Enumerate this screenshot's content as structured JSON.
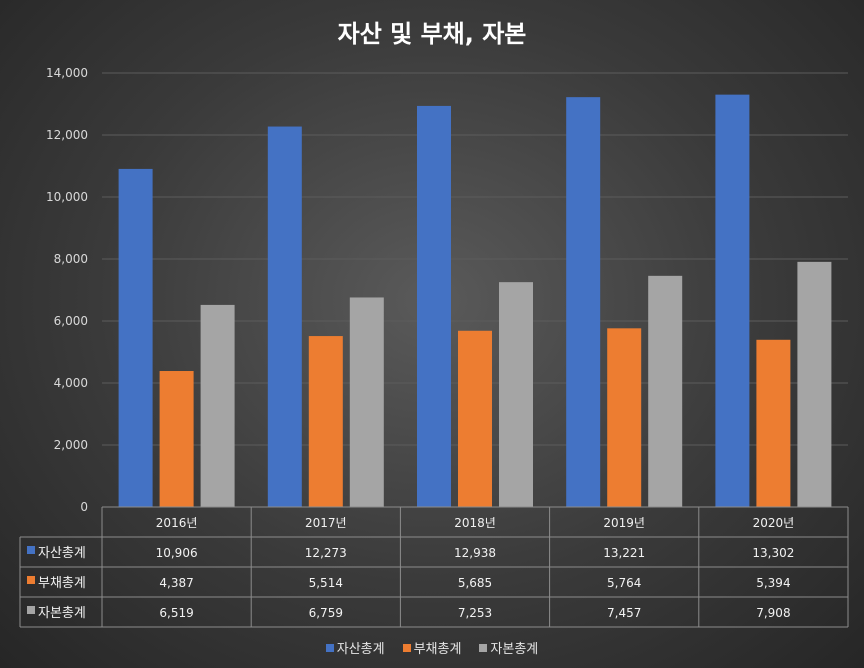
{
  "chart_data": {
    "type": "bar",
    "title": "자산 및 부채, 자본",
    "categories": [
      "2016년",
      "2017년",
      "2018년",
      "2019년",
      "2020년"
    ],
    "series": [
      {
        "name": "자산총계",
        "color": "#4472c4",
        "values": [
          10906,
          12273,
          12938,
          13221,
          13302
        ],
        "labels": [
          "10,906",
          "12,273",
          "12,938",
          "13,221",
          "13,302"
        ]
      },
      {
        "name": "부채총계",
        "color": "#ed7d31",
        "values": [
          4387,
          5514,
          5685,
          5764,
          5394
        ],
        "labels": [
          "4,387",
          "5,514",
          "5,685",
          "5,764",
          "5,394"
        ]
      },
      {
        "name": "자본총계",
        "color": "#a5a5a5",
        "values": [
          6519,
          6759,
          7253,
          7457,
          7908
        ],
        "labels": [
          "6,519",
          "6,759",
          "7,253",
          "7,457",
          "7,908"
        ]
      }
    ],
    "yticks": [
      "0",
      "2,000",
      "4,000",
      "6,000",
      "8,000",
      "10,000",
      "12,000",
      "14,000"
    ],
    "ylim": [
      0,
      14000
    ],
    "grid": true,
    "data_table": true,
    "legend": "bottom"
  }
}
